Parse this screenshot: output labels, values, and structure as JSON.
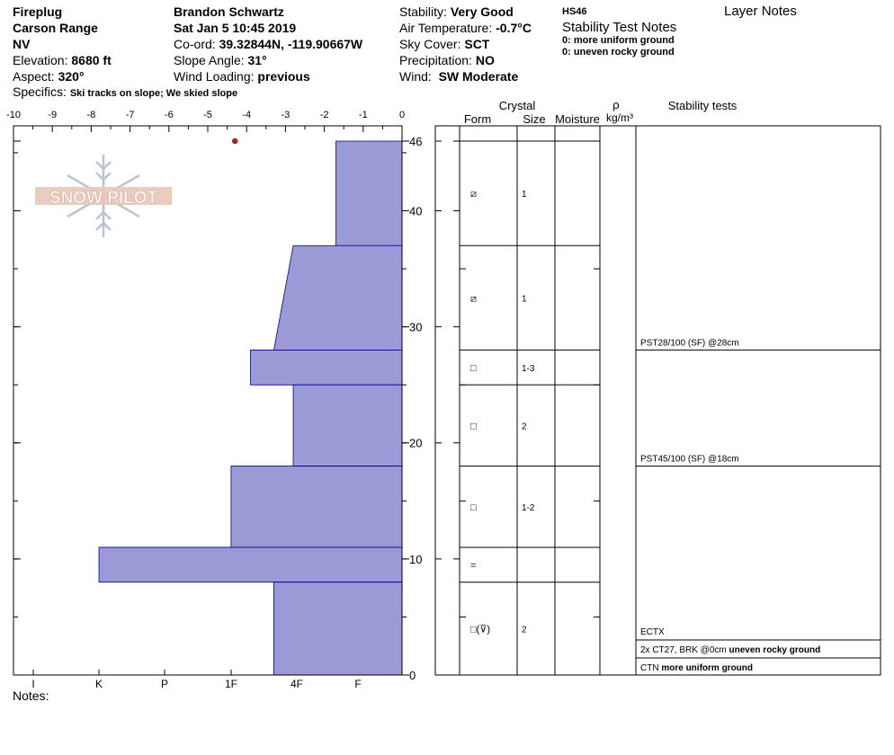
{
  "header": {
    "col1": {
      "location": "Fireplug",
      "range": "Carson Range",
      "state": "NV",
      "elevation_label": "Elevation:",
      "elevation": "8680 ft",
      "aspect_label": "Aspect:",
      "aspect": "320°"
    },
    "col2": {
      "observer": "Brandon Schwartz",
      "datetime": "Sat Jan 5 10:45 2019",
      "coord_label": "Co-ord:",
      "coord": "39.32844N, -119.90667W",
      "slope_label": "Slope Angle:",
      "slope": "31°",
      "wind_loading_label": "Wind Loading:",
      "wind_loading": "previous"
    },
    "col3": {
      "stability_label": "Stability:",
      "stability": "Very Good",
      "air_temp_label": "Air Temperature:",
      "air_temp": "-0.7°C",
      "sky_label": "Sky Cover:",
      "sky": "SCT",
      "precip_label": "Precipitation:",
      "precip": "NO",
      "wind_label": "Wind:",
      "wind": "SW Moderate"
    },
    "col4": {
      "hs": "HS46",
      "notes_title": "Stability Test Notes",
      "note1": "0: more uniform ground",
      "note2": "0: uneven rocky ground"
    },
    "layer_notes_title": "Layer Notes",
    "specifics_label": "Specifics:",
    "specifics": "Ski tracks on slope; We skied slope",
    "notes_label": "Notes:"
  },
  "chart_data": {
    "type": "bar",
    "orientation": "horizontal",
    "temperature_axis": {
      "ticks": [
        "-10",
        "-9",
        "-8",
        "-7",
        "-6",
        "-5",
        "-4",
        "-3",
        "-2",
        "-1",
        "0"
      ],
      "range": [
        -10,
        0
      ]
    },
    "temperature_points": [
      {
        "temp": -4.3,
        "height": 46
      }
    ],
    "height_axis": {
      "ticks": [
        "46",
        "40",
        "30",
        "20",
        "10",
        "0"
      ],
      "range": [
        0,
        46
      ]
    },
    "hardness_axis": {
      "ticks": [
        "I",
        "K",
        "P",
        "1F",
        "4F",
        "F"
      ]
    },
    "layers": [
      {
        "top": 46,
        "bottom": 37,
        "hardness_top": -1.7,
        "hardness_bottom": -1.7,
        "form": "⧄",
        "size": "1"
      },
      {
        "top": 37,
        "bottom": 28,
        "hardness_top": -2.8,
        "hardness_bottom": -3.3,
        "form": "⧄",
        "size": "1"
      },
      {
        "top": 28,
        "bottom": 25,
        "hardness_top": -3.9,
        "hardness_bottom": -3.9,
        "form": "□",
        "size": "1-3"
      },
      {
        "top": 25,
        "bottom": 18,
        "hardness_top": -2.8,
        "hardness_bottom": -2.8,
        "form": "□",
        "size": "2"
      },
      {
        "top": 18,
        "bottom": 11,
        "hardness_top": -4.4,
        "hardness_bottom": -4.4,
        "form": "□",
        "size": "1-2"
      },
      {
        "top": 11,
        "bottom": 8,
        "hardness_top": -7.8,
        "hardness_bottom": -7.8,
        "form": "=",
        "size": ""
      },
      {
        "top": 8,
        "bottom": 0,
        "hardness_top": -3.3,
        "hardness_bottom": -3.3,
        "form": "□(⊽)",
        "size": "2"
      }
    ],
    "columns": {
      "crystal": "Crystal",
      "form": "Form",
      "size": "Size",
      "moisture": "Moisture",
      "rho": "ρ",
      "density_unit": "kg/m³",
      "stability_tests": "Stability tests"
    },
    "stability_tests": [
      {
        "height": 28,
        "text": "PST28/100 (SF) @28cm",
        "note": ""
      },
      {
        "height": 18,
        "text": "PST45/100 (SF) @18cm",
        "note": ""
      },
      {
        "height": null,
        "text": "ECTX",
        "note": ""
      },
      {
        "height": null,
        "text": "2x CT27, BRK @0cm",
        "note": "uneven rocky ground"
      },
      {
        "height": null,
        "text": "CTN",
        "note": "more uniform ground"
      }
    ],
    "colors": {
      "bar_fill": "#9B99D6",
      "bar_stroke": "#00008B",
      "temp_point": "#B22222"
    }
  }
}
